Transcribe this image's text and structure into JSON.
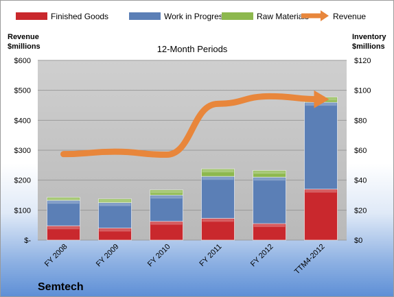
{
  "company": "Semtech",
  "chart_data": {
    "type": "bar",
    "subtype": "stacked-bar-with-line",
    "title": "12-Month Periods",
    "categories": [
      "FY 2008",
      "FY 2009",
      "FY 2010",
      "FY 2011",
      "FY 2012",
      "TTM4-2012"
    ],
    "left_axis": {
      "label_line1": "Revenue",
      "label_line2": "$millions",
      "ylim": [
        0,
        600
      ],
      "ticks": [
        "$-",
        "$100",
        "$200",
        "$300",
        "$400",
        "$500",
        "$600"
      ]
    },
    "right_axis": {
      "label_line1": "Inventory",
      "label_line2": "$millions",
      "ylim": [
        0,
        120
      ],
      "ticks": [
        "$0",
        "$20",
        "$40",
        "$60",
        "$80",
        "$100",
        "$120"
      ]
    },
    "series": [
      {
        "name": "Finished Goods",
        "axis": "right",
        "color": "#c9282d",
        "values": [
          9.5,
          8,
          12.5,
          14.5,
          11,
          34
        ]
      },
      {
        "name": "Work in Progress",
        "axis": "right",
        "color": "#5b7fb6",
        "values": [
          17,
          17,
          17.5,
          28,
          31,
          58
        ]
      },
      {
        "name": "Raw Materials",
        "axis": "right",
        "color": "#8db84e",
        "values": [
          2,
          2.5,
          3.5,
          5,
          4.5,
          3.5
        ]
      },
      {
        "name": "Revenue",
        "axis": "left",
        "type": "line",
        "color": "#e8863b",
        "values": [
          287,
          295,
          285,
          455,
          480,
          470
        ]
      }
    ],
    "grid": true,
    "legend": "top"
  }
}
